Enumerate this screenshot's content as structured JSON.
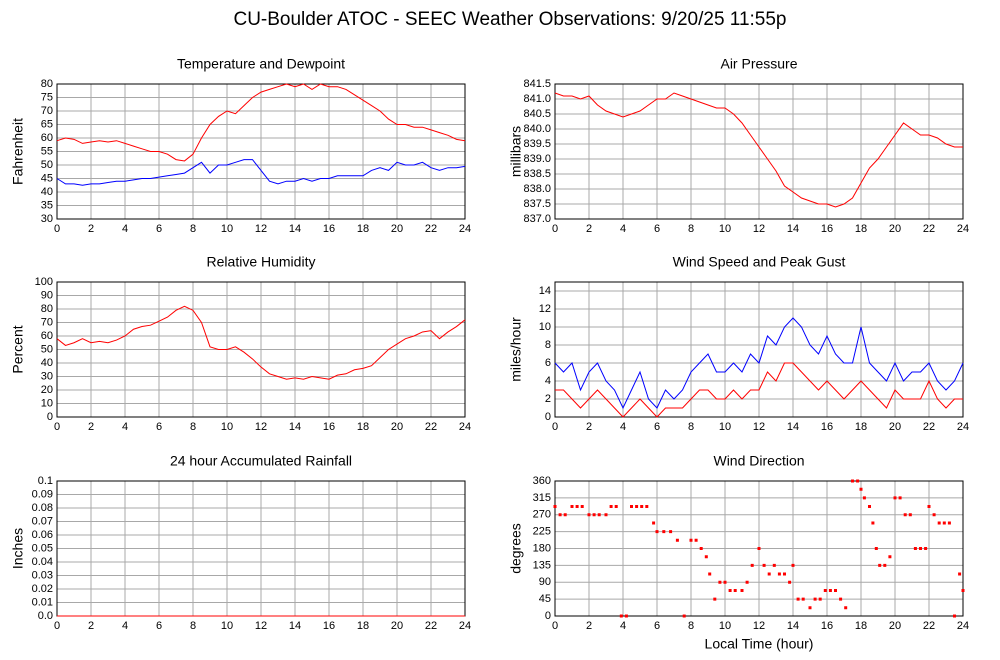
{
  "title": "CU-Boulder ATOC - SEEC Weather Observations: 9/20/25 11:55p",
  "chart_data": [
    {
      "type": "line",
      "title": "Temperature and Dewpoint",
      "ylabel": "Fahrenheit",
      "x": [
        0,
        0.5,
        1,
        1.5,
        2,
        2.5,
        3,
        3.5,
        4,
        4.5,
        5,
        5.5,
        6,
        6.5,
        7,
        7.5,
        8,
        8.5,
        9,
        9.5,
        10,
        10.5,
        11,
        11.5,
        12,
        12.5,
        13,
        13.5,
        14,
        14.5,
        15,
        15.5,
        16,
        16.5,
        17,
        17.5,
        18,
        18.5,
        19,
        19.5,
        20,
        20.5,
        21,
        21.5,
        22,
        22.5,
        23,
        23.5,
        24
      ],
      "series": [
        {
          "color": "#ff0000",
          "values": [
            59,
            60,
            59.5,
            58,
            58.5,
            59,
            58.5,
            59,
            58,
            57,
            56,
            55,
            55,
            54,
            52,
            51.5,
            54,
            60,
            65,
            68,
            70,
            69,
            72,
            75,
            77,
            78,
            79,
            80,
            79,
            80,
            78,
            80,
            79,
            79,
            78,
            76,
            74,
            72,
            70,
            67,
            65,
            65,
            64,
            64,
            63,
            62,
            61,
            59.5,
            59
          ]
        },
        {
          "color": "#0000ff",
          "values": [
            45,
            43,
            43,
            42.5,
            43,
            43,
            43.5,
            44,
            44,
            44.5,
            45,
            45,
            45.5,
            46,
            46.5,
            47,
            49,
            51,
            47,
            50,
            50,
            51,
            52,
            52,
            48,
            44,
            43,
            44,
            44,
            45,
            44,
            45,
            45,
            46,
            46,
            46,
            46,
            48,
            49,
            48,
            51,
            50,
            50,
            51,
            49,
            48,
            49,
            49,
            49.5
          ]
        }
      ],
      "xlim": [
        0,
        24
      ],
      "xticks": [
        0,
        2,
        4,
        6,
        8,
        10,
        12,
        14,
        16,
        18,
        20,
        22,
        24
      ],
      "ylim": [
        30,
        80
      ],
      "yticks": [
        30,
        35,
        40,
        45,
        50,
        55,
        60,
        65,
        70,
        75,
        80
      ],
      "grid": true
    },
    {
      "type": "line",
      "title": "Air Pressure",
      "ylabel": "millibars",
      "x": [
        0,
        0.5,
        1,
        1.5,
        2,
        2.5,
        3,
        3.5,
        4,
        4.5,
        5,
        5.5,
        6,
        6.5,
        7,
        7.5,
        8,
        8.5,
        9,
        9.5,
        10,
        10.5,
        11,
        11.5,
        12,
        12.5,
        13,
        13.5,
        14,
        14.5,
        15,
        15.5,
        16,
        16.5,
        17,
        17.5,
        18,
        18.5,
        19,
        19.5,
        20,
        20.5,
        21,
        21.5,
        22,
        22.5,
        23,
        23.5,
        24
      ],
      "series": [
        {
          "color": "#ff0000",
          "values": [
            841.2,
            841.1,
            841.1,
            841.0,
            841.1,
            840.8,
            840.6,
            840.5,
            840.4,
            840.5,
            840.6,
            840.8,
            841.0,
            841.0,
            841.2,
            841.1,
            841.0,
            840.9,
            840.8,
            840.7,
            840.7,
            840.5,
            840.2,
            839.8,
            839.4,
            839.0,
            838.6,
            838.1,
            837.9,
            837.7,
            837.6,
            837.5,
            837.5,
            837.4,
            837.5,
            837.7,
            838.2,
            838.7,
            839.0,
            839.4,
            839.8,
            840.2,
            840.0,
            839.8,
            839.8,
            839.7,
            839.5,
            839.4,
            839.4
          ]
        }
      ],
      "xlim": [
        0,
        24
      ],
      "xticks": [
        0,
        2,
        4,
        6,
        8,
        10,
        12,
        14,
        16,
        18,
        20,
        22,
        24
      ],
      "ylim": [
        837,
        841.5
      ],
      "yticks": [
        {
          "value": 837,
          "label": "837.0"
        },
        837.5,
        {
          "value": 838,
          "label": "838.0"
        },
        838.5,
        {
          "value": 839,
          "label": "839.0"
        },
        839.5,
        {
          "value": 840,
          "label": "840.0"
        },
        840.5,
        {
          "value": 841,
          "label": "841.0"
        },
        841.5
      ],
      "grid": true
    },
    {
      "type": "line",
      "title": "Relative Humidity",
      "ylabel": "Percent",
      "x": [
        0,
        0.5,
        1,
        1.5,
        2,
        2.5,
        3,
        3.5,
        4,
        4.5,
        5,
        5.5,
        6,
        6.5,
        7,
        7.5,
        8,
        8.5,
        9,
        9.5,
        10,
        10.5,
        11,
        11.5,
        12,
        12.5,
        13,
        13.5,
        14,
        14.5,
        15,
        15.5,
        16,
        16.5,
        17,
        17.5,
        18,
        18.5,
        19,
        19.5,
        20,
        20.5,
        21,
        21.5,
        22,
        22.5,
        23,
        23.5,
        24
      ],
      "series": [
        {
          "color": "#ff0000",
          "values": [
            58,
            53,
            55,
            58,
            55,
            56,
            55,
            57,
            60,
            65,
            67,
            68,
            71,
            74,
            79,
            82,
            79,
            70,
            52,
            50,
            50,
            52,
            48,
            43,
            37,
            32,
            30,
            28,
            29,
            28,
            30,
            29,
            28,
            31,
            32,
            35,
            36,
            38,
            44,
            50,
            54,
            58,
            60,
            63,
            64,
            58,
            63,
            67,
            72
          ]
        }
      ],
      "xlim": [
        0,
        24
      ],
      "xticks": [
        0,
        2,
        4,
        6,
        8,
        10,
        12,
        14,
        16,
        18,
        20,
        22,
        24
      ],
      "ylim": [
        0,
        100
      ],
      "yticks": [
        0,
        10,
        20,
        30,
        40,
        50,
        60,
        70,
        80,
        90,
        100
      ],
      "grid": true
    },
    {
      "type": "line",
      "title": "Wind Speed and Peak Gust",
      "ylabel": "miles/hour",
      "x": [
        0,
        0.5,
        1,
        1.5,
        2,
        2.5,
        3,
        3.5,
        4,
        4.5,
        5,
        5.5,
        6,
        6.5,
        7,
        7.5,
        8,
        8.5,
        9,
        9.5,
        10,
        10.5,
        11,
        11.5,
        12,
        12.5,
        13,
        13.5,
        14,
        14.5,
        15,
        15.5,
        16,
        16.5,
        17,
        17.5,
        18,
        18.5,
        19,
        19.5,
        20,
        20.5,
        21,
        21.5,
        22,
        22.5,
        23,
        23.5,
        24
      ],
      "series": [
        {
          "color": "#0000ff",
          "values": [
            6,
            5,
            6,
            3,
            5,
            6,
            4,
            3,
            1,
            3,
            5,
            2,
            1,
            3,
            2,
            3,
            5,
            6,
            7,
            5,
            5,
            6,
            5,
            7,
            6,
            9,
            8,
            10,
            11,
            10,
            8,
            7,
            9,
            7,
            6,
            6,
            10,
            6,
            5,
            4,
            6,
            4,
            5,
            5,
            6,
            4,
            3,
            4,
            6
          ]
        },
        {
          "color": "#ff0000",
          "values": [
            3,
            3,
            2,
            1,
            2,
            3,
            2,
            1,
            0,
            1,
            2,
            1,
            0,
            1,
            1,
            1,
            2,
            3,
            3,
            2,
            2,
            3,
            2,
            3,
            3,
            5,
            4,
            6,
            6,
            5,
            4,
            3,
            4,
            3,
            2,
            3,
            4,
            3,
            2,
            1,
            3,
            2,
            2,
            2,
            4,
            2,
            1,
            2,
            2
          ]
        }
      ],
      "xlim": [
        0,
        24
      ],
      "xticks": [
        0,
        2,
        4,
        6,
        8,
        10,
        12,
        14,
        16,
        18,
        20,
        22,
        24
      ],
      "ylim": [
        0,
        15
      ],
      "yticks": [
        0,
        2,
        4,
        6,
        8,
        10,
        12,
        14
      ],
      "grid": true
    },
    {
      "type": "line",
      "title": "24 hour Accumulated Rainfall",
      "ylabel": "Inches",
      "x": [
        0,
        24
      ],
      "series": [
        {
          "color": "#ff0000",
          "values": [
            0,
            0
          ]
        }
      ],
      "xlim": [
        0,
        24
      ],
      "xticks": [
        0,
        2,
        4,
        6,
        8,
        10,
        12,
        14,
        16,
        18,
        20,
        22,
        24
      ],
      "ylim": [
        0,
        0.1
      ],
      "yticks": [
        {
          "value": 0,
          "label": "0.0"
        },
        0.01,
        0.02,
        0.03,
        0.04,
        0.05,
        0.06,
        0.07,
        0.08,
        0.09,
        0.1
      ],
      "grid": true
    },
    {
      "type": "scatter",
      "title": "Wind Direction",
      "ylabel": "degrees",
      "xlabel": "Local Time (hour)",
      "color": "#ff0000",
      "x": [
        0,
        0.3,
        0.6,
        1,
        1.3,
        1.6,
        2,
        2.3,
        2.6,
        3,
        3.3,
        3.6,
        3.9,
        4.2,
        4.5,
        4.8,
        5.1,
        5.4,
        5.8,
        6,
        6.4,
        6.8,
        7.2,
        7.6,
        8,
        8.3,
        8.6,
        8.9,
        9.1,
        9.4,
        9.7,
        10,
        10.3,
        10.6,
        11,
        11.3,
        11.6,
        12,
        12.3,
        12.6,
        12.9,
        13.2,
        13.5,
        13.8,
        14,
        14.3,
        14.6,
        15,
        15.3,
        15.6,
        15.9,
        16.2,
        16.5,
        16.8,
        17.1,
        17.5,
        17.8,
        18,
        18.2,
        18.5,
        18.7,
        18.9,
        19.1,
        19.4,
        19.7,
        20,
        20.3,
        20.6,
        20.9,
        21.2,
        21.5,
        21.8,
        22,
        22.3,
        22.6,
        22.9,
        23.2,
        23.5,
        23.8,
        24
      ],
      "values": [
        292,
        270,
        270,
        292,
        292,
        292,
        270,
        270,
        270,
        270,
        292,
        292,
        0,
        0,
        292,
        292,
        292,
        292,
        248,
        225,
        225,
        225,
        202,
        0,
        202,
        202,
        180,
        158,
        112,
        45,
        90,
        90,
        68,
        68,
        68,
        90,
        135,
        180,
        135,
        112,
        135,
        112,
        112,
        90,
        135,
        45,
        45,
        22,
        45,
        45,
        68,
        68,
        68,
        45,
        22,
        360,
        360,
        338,
        315,
        292,
        248,
        180,
        135,
        135,
        158,
        315,
        315,
        270,
        270,
        180,
        180,
        180,
        292,
        270,
        248,
        248,
        248,
        0,
        112,
        68
      ],
      "xlim": [
        0,
        24
      ],
      "xticks": [
        0,
        2,
        4,
        6,
        8,
        10,
        12,
        14,
        16,
        18,
        20,
        22,
        24
      ],
      "ylim": [
        0,
        360
      ],
      "yticks": [
        0,
        45,
        90,
        135,
        180,
        225,
        270,
        315,
        360
      ],
      "grid": true
    }
  ]
}
